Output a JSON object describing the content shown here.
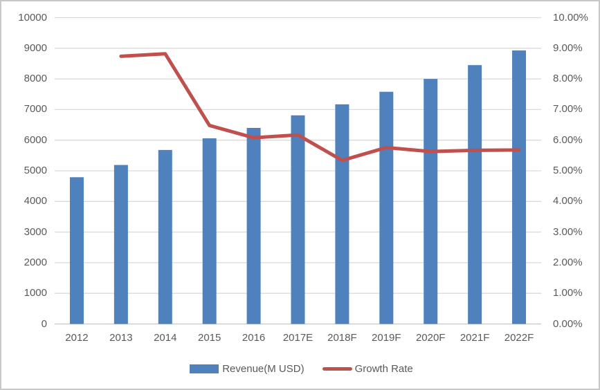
{
  "chart_data": {
    "type": "bar",
    "combo_types": [
      "bar",
      "line"
    ],
    "title": "",
    "categories": [
      "2012",
      "2013",
      "2014",
      "2015",
      "2016",
      "2017E",
      "2018F",
      "2019F",
      "2020F",
      "2021F",
      "2022F"
    ],
    "series": [
      {
        "name": "Revenue(M USD)",
        "type": "bar",
        "axis": "left",
        "color": "#4F81BD",
        "values": [
          4790,
          5190,
          5680,
          6060,
          6400,
          6810,
          7170,
          7580,
          8000,
          8450,
          8930
        ]
      },
      {
        "name": "Growth Rate",
        "type": "line",
        "axis": "right",
        "color": "#C0504D",
        "values": [
          null,
          8.74,
          8.82,
          6.48,
          6.08,
          6.17,
          5.34,
          5.76,
          5.63,
          5.67,
          5.68
        ]
      }
    ],
    "left_axis": {
      "min": 0,
      "max": 10000,
      "step": 1000,
      "tick_labels": [
        "0",
        "1000",
        "2000",
        "3000",
        "4000",
        "5000",
        "6000",
        "7000",
        "8000",
        "9000",
        "10000"
      ]
    },
    "right_axis": {
      "min": 0,
      "max": 10,
      "step": 1,
      "tick_labels": [
        "0.00%",
        "1.00%",
        "2.00%",
        "3.00%",
        "4.00%",
        "5.00%",
        "6.00%",
        "7.00%",
        "8.00%",
        "9.00%",
        "10.00%"
      ]
    },
    "grid": "horizontal",
    "legend_position": "bottom",
    "colors": {
      "gridline": "#D9D9D9",
      "baseline": "#C6C6C6",
      "tick_text": "#595959",
      "frame_border": "#C8C8C8"
    }
  }
}
